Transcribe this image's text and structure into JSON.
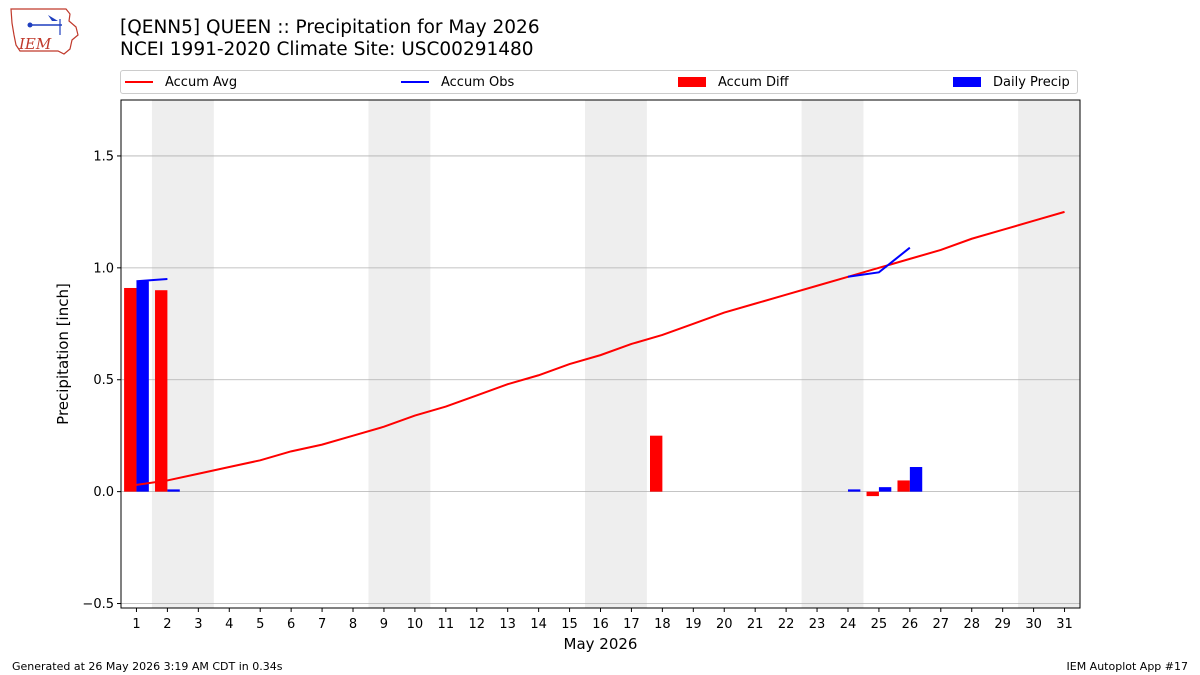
{
  "logo": {
    "text": "IEM",
    "colors": {
      "outline": "#c0392b",
      "text": "#c0392b",
      "accent": "#1f3fbf"
    }
  },
  "chart_data": {
    "type": "bar+line",
    "title": "[QENN5] QUEEN :: Precipitation for May 2026",
    "subtitle": "NCEI 1991-2020 Climate Site: USC00291480",
    "xlabel": "May 2026",
    "ylabel": "Precipitation [inch]",
    "xlim": [
      0.5,
      31.5
    ],
    "ylim": [
      -0.52,
      1.75
    ],
    "xticks": [
      1,
      2,
      3,
      4,
      5,
      6,
      7,
      8,
      9,
      10,
      11,
      12,
      13,
      14,
      15,
      16,
      17,
      18,
      19,
      20,
      21,
      22,
      23,
      24,
      25,
      26,
      27,
      28,
      29,
      30,
      31
    ],
    "yticks": [
      -0.5,
      0.0,
      0.5,
      1.0,
      1.5
    ],
    "ytick_labels": [
      "−0.5",
      "0.0",
      "0.5",
      "1.0",
      "1.5"
    ],
    "grid": "y",
    "weekend_shading": [
      [
        1.5,
        3.5
      ],
      [
        8.5,
        10.5
      ],
      [
        15.5,
        17.5
      ],
      [
        22.5,
        24.5
      ],
      [
        29.5,
        31.5
      ]
    ],
    "legend": {
      "placement": "top",
      "entries": [
        {
          "label": "Accum Avg",
          "kind": "line",
          "color": "#ff0000"
        },
        {
          "label": "Accum Obs",
          "kind": "line",
          "color": "#0000ff"
        },
        {
          "label": "Accum Diff",
          "kind": "bar",
          "color": "#ff0000"
        },
        {
          "label": "Daily Precip",
          "kind": "bar",
          "color": "#0000ff"
        }
      ]
    },
    "series": [
      {
        "name": "Accum Avg",
        "kind": "line",
        "color": "#ff0000",
        "x": [
          1,
          2,
          3,
          4,
          5,
          6,
          7,
          8,
          9,
          10,
          11,
          12,
          13,
          14,
          15,
          16,
          17,
          18,
          19,
          20,
          21,
          22,
          23,
          24,
          25,
          26,
          27,
          28,
          29,
          30,
          31
        ],
        "values": [
          0.03,
          0.05,
          0.08,
          0.11,
          0.14,
          0.18,
          0.21,
          0.25,
          0.29,
          0.34,
          0.38,
          0.43,
          0.48,
          0.52,
          0.57,
          0.61,
          0.66,
          0.7,
          0.75,
          0.8,
          0.84,
          0.88,
          0.92,
          0.96,
          1.0,
          1.04,
          1.08,
          1.13,
          1.17,
          1.21,
          1.25
        ]
      },
      {
        "name": "Accum Obs",
        "kind": "line",
        "color": "#0000ff",
        "segments": [
          {
            "x": [
              1,
              2
            ],
            "values": [
              0.94,
              0.95
            ]
          },
          {
            "x": [
              24,
              25,
              26
            ],
            "values": [
              0.96,
              0.98,
              1.09
            ]
          }
        ]
      },
      {
        "name": "Accum Diff",
        "kind": "bar",
        "color": "#ff0000",
        "x": [
          1,
          2,
          18,
          25,
          26
        ],
        "values": [
          0.91,
          0.9,
          0.25,
          -0.02,
          0.05
        ]
      },
      {
        "name": "Daily Precip",
        "kind": "bar",
        "color": "#0000ff",
        "x": [
          1,
          2,
          24,
          25,
          26
        ],
        "values": [
          0.94,
          0.01,
          0.01,
          0.02,
          0.11
        ]
      }
    ]
  },
  "footer": {
    "left": "Generated at 26 May 2026 3:19 AM CDT in 0.34s",
    "right": "IEM Autoplot App #17"
  }
}
